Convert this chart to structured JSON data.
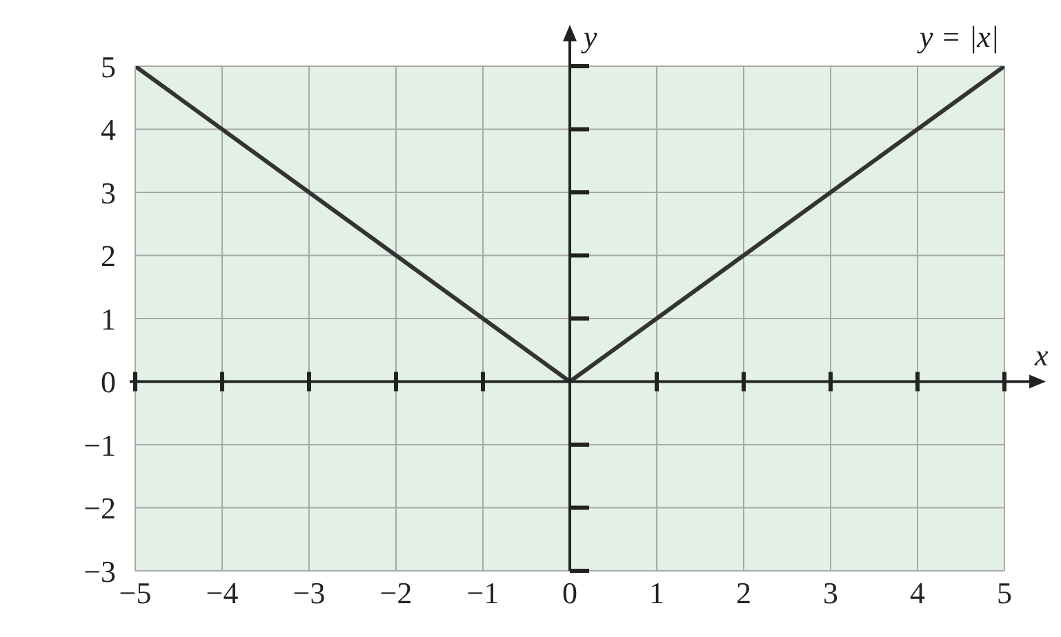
{
  "chart_data": {
    "type": "line",
    "xlabel": "x",
    "ylabel": "y",
    "annotations": [
      "y = |x|"
    ],
    "x": [
      -5,
      0,
      5
    ],
    "series": [
      {
        "color": "#333333",
        "values": [
          5,
          0,
          5
        ]
      }
    ],
    "xlim": [
      -5,
      5
    ],
    "ylim": [
      -3,
      5
    ],
    "xticks": [
      {
        "value": -5,
        "label": "−5"
      },
      {
        "value": -4,
        "label": "−4"
      },
      {
        "value": -3,
        "label": "−3"
      },
      {
        "value": -2,
        "label": "−2"
      },
      {
        "value": -1,
        "label": "−1"
      },
      0,
      1,
      2,
      3,
      4,
      5
    ],
    "yticks": [
      {
        "value": -3,
        "label": "−3"
      },
      {
        "value": -2,
        "label": "−2"
      },
      {
        "value": -1,
        "label": "−1"
      },
      0,
      1,
      2,
      3,
      4,
      5
    ],
    "grid": true,
    "marker": "none",
    "line_style": "solid"
  }
}
